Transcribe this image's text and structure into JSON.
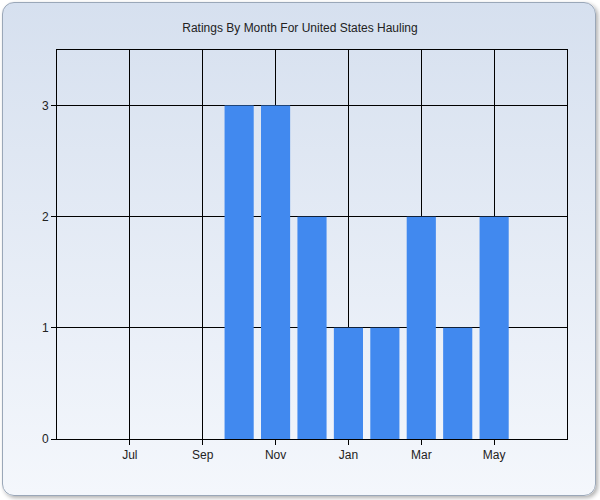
{
  "chart_data": {
    "type": "bar",
    "title": "Ratings By Month For United States Hauling",
    "categories": [
      null,
      "Jul",
      null,
      "Sep",
      null,
      "Nov",
      null,
      "Jan",
      null,
      "Mar",
      null,
      "May",
      null
    ],
    "values": [
      0,
      0,
      0,
      0,
      3,
      3,
      2,
      1,
      1,
      2,
      1,
      2,
      0
    ],
    "color": "#4189ef",
    "ylim": [
      0,
      3.5
    ],
    "yticks": [
      0,
      1,
      2,
      3
    ],
    "grid": true
  }
}
